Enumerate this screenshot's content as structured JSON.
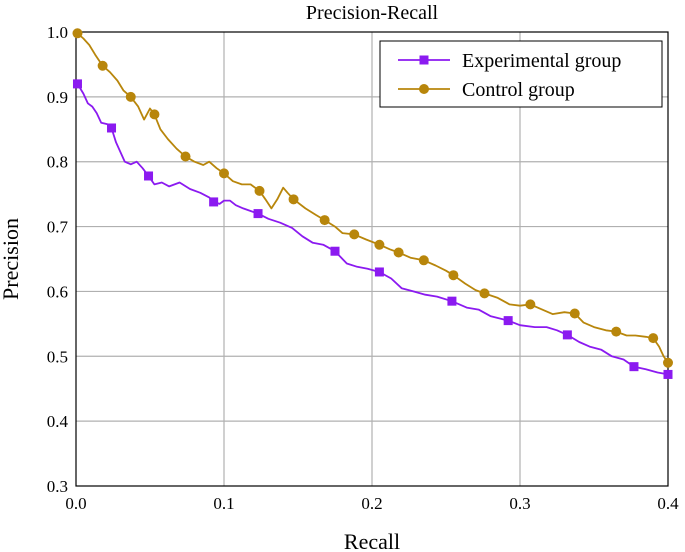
{
  "chart_data": {
    "type": "line",
    "title": "Precision-Recall",
    "xlabel": "Recall",
    "ylabel": "Precision",
    "xlim": [
      0.0,
      0.4
    ],
    "ylim": [
      0.3,
      1.0
    ],
    "x_ticks": [
      0.0,
      0.1,
      0.2,
      0.3,
      0.4
    ],
    "x_tick_labels": [
      "0.0",
      "0.1",
      "0.2",
      "0.3",
      "0.4"
    ],
    "y_ticks": [
      0.3,
      0.4,
      0.5,
      0.6,
      0.7,
      0.8,
      0.9,
      1.0
    ],
    "y_tick_labels": [
      "0.3",
      "0.4",
      "0.5",
      "0.6",
      "0.7",
      "0.8",
      "0.9",
      "1.0"
    ],
    "grid": true,
    "legend_position": "top-right",
    "series": [
      {
        "name": "Experimental group",
        "color": "#8B1AF0",
        "marker": "square",
        "line": [
          [
            0.001,
            0.92
          ],
          [
            0.005,
            0.905
          ],
          [
            0.008,
            0.89
          ],
          [
            0.011,
            0.885
          ],
          [
            0.014,
            0.875
          ],
          [
            0.017,
            0.86
          ],
          [
            0.021,
            0.858
          ],
          [
            0.024,
            0.852
          ],
          [
            0.027,
            0.83
          ],
          [
            0.03,
            0.815
          ],
          [
            0.033,
            0.8
          ],
          [
            0.037,
            0.796
          ],
          [
            0.041,
            0.8
          ],
          [
            0.045,
            0.79
          ],
          [
            0.049,
            0.778
          ],
          [
            0.053,
            0.765
          ],
          [
            0.058,
            0.768
          ],
          [
            0.063,
            0.762
          ],
          [
            0.07,
            0.768
          ],
          [
            0.077,
            0.758
          ],
          [
            0.084,
            0.752
          ],
          [
            0.09,
            0.745
          ],
          [
            0.093,
            0.738
          ],
          [
            0.097,
            0.735
          ],
          [
            0.1,
            0.74
          ],
          [
            0.104,
            0.74
          ],
          [
            0.108,
            0.733
          ],
          [
            0.113,
            0.728
          ],
          [
            0.118,
            0.724
          ],
          [
            0.123,
            0.72
          ],
          [
            0.13,
            0.712
          ],
          [
            0.138,
            0.706
          ],
          [
            0.146,
            0.698
          ],
          [
            0.153,
            0.685
          ],
          [
            0.16,
            0.675
          ],
          [
            0.167,
            0.672
          ],
          [
            0.175,
            0.662
          ],
          [
            0.183,
            0.643
          ],
          [
            0.19,
            0.638
          ],
          [
            0.197,
            0.635
          ],
          [
            0.205,
            0.63
          ],
          [
            0.213,
            0.62
          ],
          [
            0.22,
            0.605
          ],
          [
            0.228,
            0.6
          ],
          [
            0.236,
            0.595
          ],
          [
            0.244,
            0.592
          ],
          [
            0.254,
            0.585
          ],
          [
            0.264,
            0.575
          ],
          [
            0.272,
            0.572
          ],
          [
            0.28,
            0.562
          ],
          [
            0.287,
            0.558
          ],
          [
            0.292,
            0.555
          ],
          [
            0.3,
            0.548
          ],
          [
            0.31,
            0.545
          ],
          [
            0.318,
            0.545
          ],
          [
            0.325,
            0.54
          ],
          [
            0.332,
            0.533
          ],
          [
            0.34,
            0.522
          ],
          [
            0.347,
            0.515
          ],
          [
            0.355,
            0.51
          ],
          [
            0.362,
            0.5
          ],
          [
            0.37,
            0.495
          ],
          [
            0.377,
            0.484
          ],
          [
            0.385,
            0.48
          ],
          [
            0.393,
            0.475
          ],
          [
            0.4,
            0.472
          ]
        ],
        "marker_points": [
          [
            0.001,
            0.92
          ],
          [
            0.024,
            0.852
          ],
          [
            0.049,
            0.778
          ],
          [
            0.093,
            0.738
          ],
          [
            0.123,
            0.72
          ],
          [
            0.175,
            0.662
          ],
          [
            0.205,
            0.63
          ],
          [
            0.254,
            0.585
          ],
          [
            0.292,
            0.555
          ],
          [
            0.332,
            0.533
          ],
          [
            0.377,
            0.484
          ],
          [
            0.4,
            0.472
          ]
        ]
      },
      {
        "name": "Control group",
        "color": "#B8860B",
        "marker": "circle",
        "line": [
          [
            0.001,
            0.998
          ],
          [
            0.005,
            0.99
          ],
          [
            0.009,
            0.98
          ],
          [
            0.013,
            0.965
          ],
          [
            0.018,
            0.948
          ],
          [
            0.023,
            0.938
          ],
          [
            0.028,
            0.925
          ],
          [
            0.032,
            0.91
          ],
          [
            0.037,
            0.9
          ],
          [
            0.042,
            0.885
          ],
          [
            0.046,
            0.865
          ],
          [
            0.05,
            0.882
          ],
          [
            0.053,
            0.873
          ],
          [
            0.057,
            0.85
          ],
          [
            0.062,
            0.835
          ],
          [
            0.068,
            0.82
          ],
          [
            0.074,
            0.808
          ],
          [
            0.08,
            0.8
          ],
          [
            0.086,
            0.795
          ],
          [
            0.09,
            0.8
          ],
          [
            0.095,
            0.79
          ],
          [
            0.1,
            0.782
          ],
          [
            0.106,
            0.77
          ],
          [
            0.112,
            0.765
          ],
          [
            0.118,
            0.765
          ],
          [
            0.124,
            0.755
          ],
          [
            0.128,
            0.742
          ],
          [
            0.132,
            0.728
          ],
          [
            0.136,
            0.742
          ],
          [
            0.14,
            0.76
          ],
          [
            0.143,
            0.752
          ],
          [
            0.147,
            0.742
          ],
          [
            0.155,
            0.728
          ],
          [
            0.162,
            0.718
          ],
          [
            0.168,
            0.71
          ],
          [
            0.175,
            0.7
          ],
          [
            0.18,
            0.69
          ],
          [
            0.188,
            0.688
          ],
          [
            0.196,
            0.68
          ],
          [
            0.205,
            0.672
          ],
          [
            0.212,
            0.665
          ],
          [
            0.218,
            0.66
          ],
          [
            0.226,
            0.652
          ],
          [
            0.235,
            0.648
          ],
          [
            0.243,
            0.64
          ],
          [
            0.25,
            0.632
          ],
          [
            0.255,
            0.625
          ],
          [
            0.263,
            0.612
          ],
          [
            0.27,
            0.602
          ],
          [
            0.276,
            0.597
          ],
          [
            0.285,
            0.59
          ],
          [
            0.293,
            0.58
          ],
          [
            0.3,
            0.578
          ],
          [
            0.307,
            0.58
          ],
          [
            0.315,
            0.572
          ],
          [
            0.322,
            0.565
          ],
          [
            0.33,
            0.568
          ],
          [
            0.337,
            0.566
          ],
          [
            0.343,
            0.552
          ],
          [
            0.35,
            0.545
          ],
          [
            0.358,
            0.54
          ],
          [
            0.365,
            0.538
          ],
          [
            0.372,
            0.532
          ],
          [
            0.378,
            0.532
          ],
          [
            0.385,
            0.53
          ],
          [
            0.39,
            0.528
          ],
          [
            0.394,
            0.515
          ],
          [
            0.397,
            0.5
          ],
          [
            0.4,
            0.49
          ]
        ],
        "marker_points": [
          [
            0.001,
            0.998
          ],
          [
            0.018,
            0.948
          ],
          [
            0.037,
            0.9
          ],
          [
            0.053,
            0.873
          ],
          [
            0.074,
            0.808
          ],
          [
            0.1,
            0.782
          ],
          [
            0.124,
            0.755
          ],
          [
            0.147,
            0.742
          ],
          [
            0.168,
            0.71
          ],
          [
            0.188,
            0.688
          ],
          [
            0.205,
            0.672
          ],
          [
            0.218,
            0.66
          ],
          [
            0.235,
            0.648
          ],
          [
            0.255,
            0.625
          ],
          [
            0.276,
            0.597
          ],
          [
            0.307,
            0.58
          ],
          [
            0.337,
            0.566
          ],
          [
            0.365,
            0.538
          ],
          [
            0.39,
            0.528
          ],
          [
            0.4,
            0.49
          ]
        ]
      }
    ]
  }
}
